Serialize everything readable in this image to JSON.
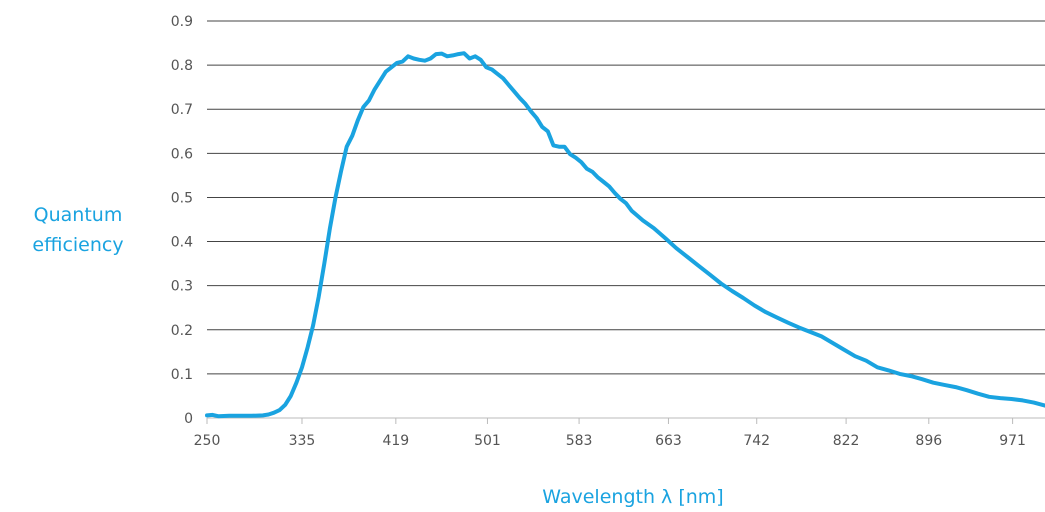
{
  "chart_data": {
    "type": "line",
    "title": "",
    "xlabel": "Wavelength λ [nm]",
    "ylabel_lines": [
      "Quantum",
      "efficiency"
    ],
    "xlim": [
      250,
      1000
    ],
    "ylim": [
      0,
      0.9
    ],
    "x_ticks": [
      250,
      335,
      419,
      501,
      583,
      663,
      742,
      822,
      896,
      971
    ],
    "y_ticks": [
      "0",
      "0.1",
      "0.2",
      "0.3",
      "0.4",
      "0.5",
      "0.6",
      "0.7",
      "0.8",
      "0.9"
    ],
    "grid": "horizontal",
    "colors": {
      "line": "#1aa3e0",
      "label": "#1aa3e0",
      "grid": "#444444",
      "tick": "#555555"
    },
    "series": [
      {
        "x": [
          250,
          255,
          260,
          270,
          280,
          290,
          300,
          305,
          310,
          315,
          320,
          325,
          330,
          335,
          340,
          345,
          350,
          355,
          360,
          365,
          370,
          375,
          380,
          385,
          390,
          395,
          400,
          405,
          410,
          415,
          420,
          425,
          430,
          435,
          440,
          445,
          450,
          455,
          460,
          465,
          470,
          475,
          480,
          485,
          490,
          495,
          500,
          505,
          510,
          515,
          520,
          525,
          530,
          535,
          540,
          545,
          550,
          555,
          560,
          565,
          570,
          575,
          580,
          585,
          590,
          595,
          600,
          605,
          610,
          615,
          620,
          625,
          630,
          640,
          650,
          660,
          670,
          680,
          690,
          700,
          710,
          720,
          730,
          740,
          750,
          760,
          770,
          780,
          790,
          800,
          810,
          820,
          830,
          840,
          850,
          860,
          870,
          880,
          890,
          900,
          910,
          920,
          930,
          940,
          950,
          960,
          970,
          980,
          990,
          1000
        ],
        "values": [
          0.006,
          0.007,
          0.004,
          0.005,
          0.005,
          0.005,
          0.006,
          0.008,
          0.012,
          0.018,
          0.03,
          0.05,
          0.08,
          0.115,
          0.16,
          0.21,
          0.275,
          0.35,
          0.43,
          0.5,
          0.56,
          0.615,
          0.64,
          0.675,
          0.705,
          0.72,
          0.745,
          0.765,
          0.785,
          0.795,
          0.805,
          0.808,
          0.82,
          0.815,
          0.812,
          0.81,
          0.815,
          0.825,
          0.826,
          0.82,
          0.822,
          0.825,
          0.827,
          0.815,
          0.82,
          0.812,
          0.795,
          0.79,
          0.78,
          0.77,
          0.755,
          0.74,
          0.725,
          0.712,
          0.695,
          0.68,
          0.66,
          0.65,
          0.618,
          0.615,
          0.615,
          0.598,
          0.59,
          0.58,
          0.565,
          0.558,
          0.545,
          0.535,
          0.525,
          0.51,
          0.497,
          0.487,
          0.47,
          0.448,
          0.43,
          0.408,
          0.385,
          0.365,
          0.345,
          0.325,
          0.305,
          0.288,
          0.272,
          0.255,
          0.24,
          0.228,
          0.216,
          0.205,
          0.195,
          0.185,
          0.17,
          0.155,
          0.14,
          0.13,
          0.115,
          0.108,
          0.1,
          0.095,
          0.088,
          0.08,
          0.075,
          0.07,
          0.063,
          0.055,
          0.048,
          0.045,
          0.043,
          0.04,
          0.035,
          0.028
        ]
      }
    ]
  }
}
